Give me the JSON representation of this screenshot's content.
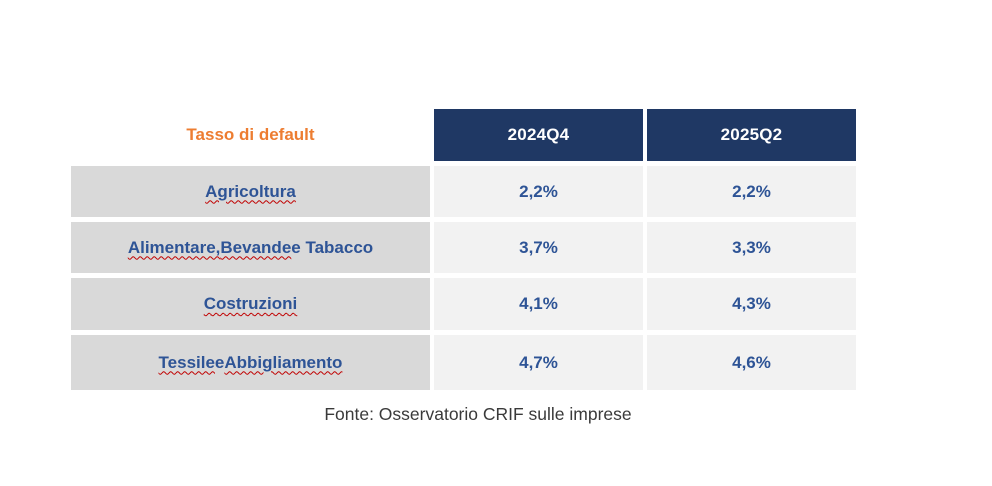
{
  "table": {
    "corner_label": "Tasso di default",
    "column_headers": [
      "2024Q4",
      "2025Q2"
    ],
    "rows": [
      {
        "label": "Agricoltura",
        "label_segments": [
          {
            "text": "Agricoltura",
            "wavy": true
          }
        ],
        "values": [
          "2,2%",
          "2,2%"
        ]
      },
      {
        "label": "Alimentare, Bevande e Tabacco",
        "label_segments": [
          {
            "text": "Alimentare,",
            "wavy": true
          },
          {
            "text": " ",
            "wavy": false
          },
          {
            "text": "Bevande",
            "wavy": true
          },
          {
            "text": " e Tabacco",
            "wavy": false
          }
        ],
        "values": [
          "3,7%",
          "3,3%"
        ]
      },
      {
        "label": "Costruzioni",
        "label_segments": [
          {
            "text": "Costruzioni",
            "wavy": true
          }
        ],
        "values": [
          "4,1%",
          "4,3%"
        ]
      },
      {
        "label": "Tessile e Abbigliamento",
        "label_segments": [
          {
            "text": "Tessile",
            "wavy": true
          },
          {
            "text": " e ",
            "wavy": false
          },
          {
            "text": "Abbigliamento",
            "wavy": true
          }
        ],
        "values": [
          "4,7%",
          "4,6%"
        ]
      }
    ]
  },
  "footer": {
    "source_text": "Fonte: Osservatorio CRIF sulle imprese"
  },
  "colors": {
    "header_background": "#1F3864",
    "header_text": "#FFFFFF",
    "corner_label_orange": "#ED7D31",
    "row_label_background": "#D9D9D9",
    "value_cell_background": "#F2F2F2",
    "table_text_navy": "#2E5496",
    "spellcheck_squiggle_red": "#C00000",
    "source_text_color": "#3A3A3A"
  },
  "chart_data": {
    "type": "table",
    "title": "Tasso di default",
    "categories": [
      "Agricoltura",
      "Alimentare, Bevande e Tabacco",
      "Costruzioni",
      "Tessile e Abbigliamento"
    ],
    "series": [
      {
        "name": "2024Q4",
        "values": [
          2.2,
          3.7,
          4.1,
          4.7
        ]
      },
      {
        "name": "2025Q2",
        "values": [
          2.2,
          3.3,
          4.3,
          4.6
        ]
      }
    ],
    "value_unit": "percent",
    "value_format": "comma-decimal percent",
    "source": "Fonte: Osservatorio CRIF sulle imprese"
  }
}
